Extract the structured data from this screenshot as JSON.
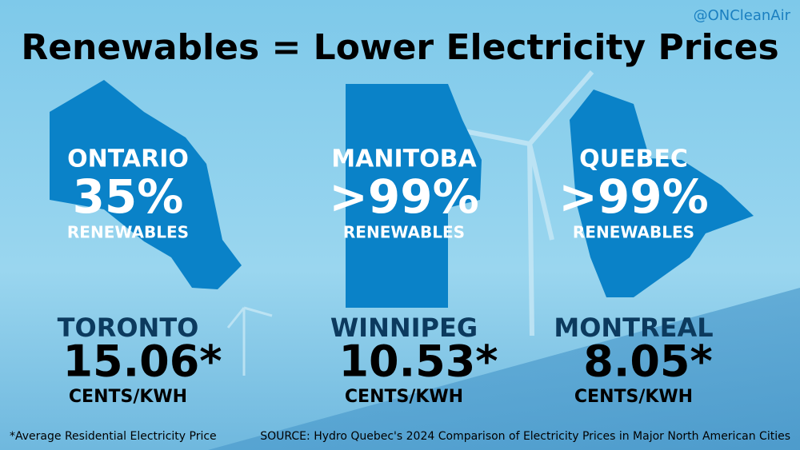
{
  "handle": "@ONCleanAir",
  "title": "Renewables = Lower Electricity Prices",
  "panels": [
    {
      "province": "ONTARIO",
      "share": "35%",
      "share_label": "RENEWABLES",
      "city": "TORONTO",
      "price": "15.06*",
      "unit": "CENTS/KWH"
    },
    {
      "province": "MANITOBA",
      "share": ">99%",
      "share_label": "RENEWABLES",
      "city": "WINNIPEG",
      "price": "10.53*",
      "unit": "CENTS/KWH"
    },
    {
      "province": "QUEBEC",
      "share": ">99%",
      "share_label": "RENEWABLES",
      "city": "MONTREAL",
      "price": "8.05*",
      "unit": "CENTS/KWH"
    }
  ],
  "footnote": "*Average Residential Electricity Price",
  "source": "SOURCE: Hydro Quebec's 2024 Comparison of Electricity Prices in Major North American Cities"
}
